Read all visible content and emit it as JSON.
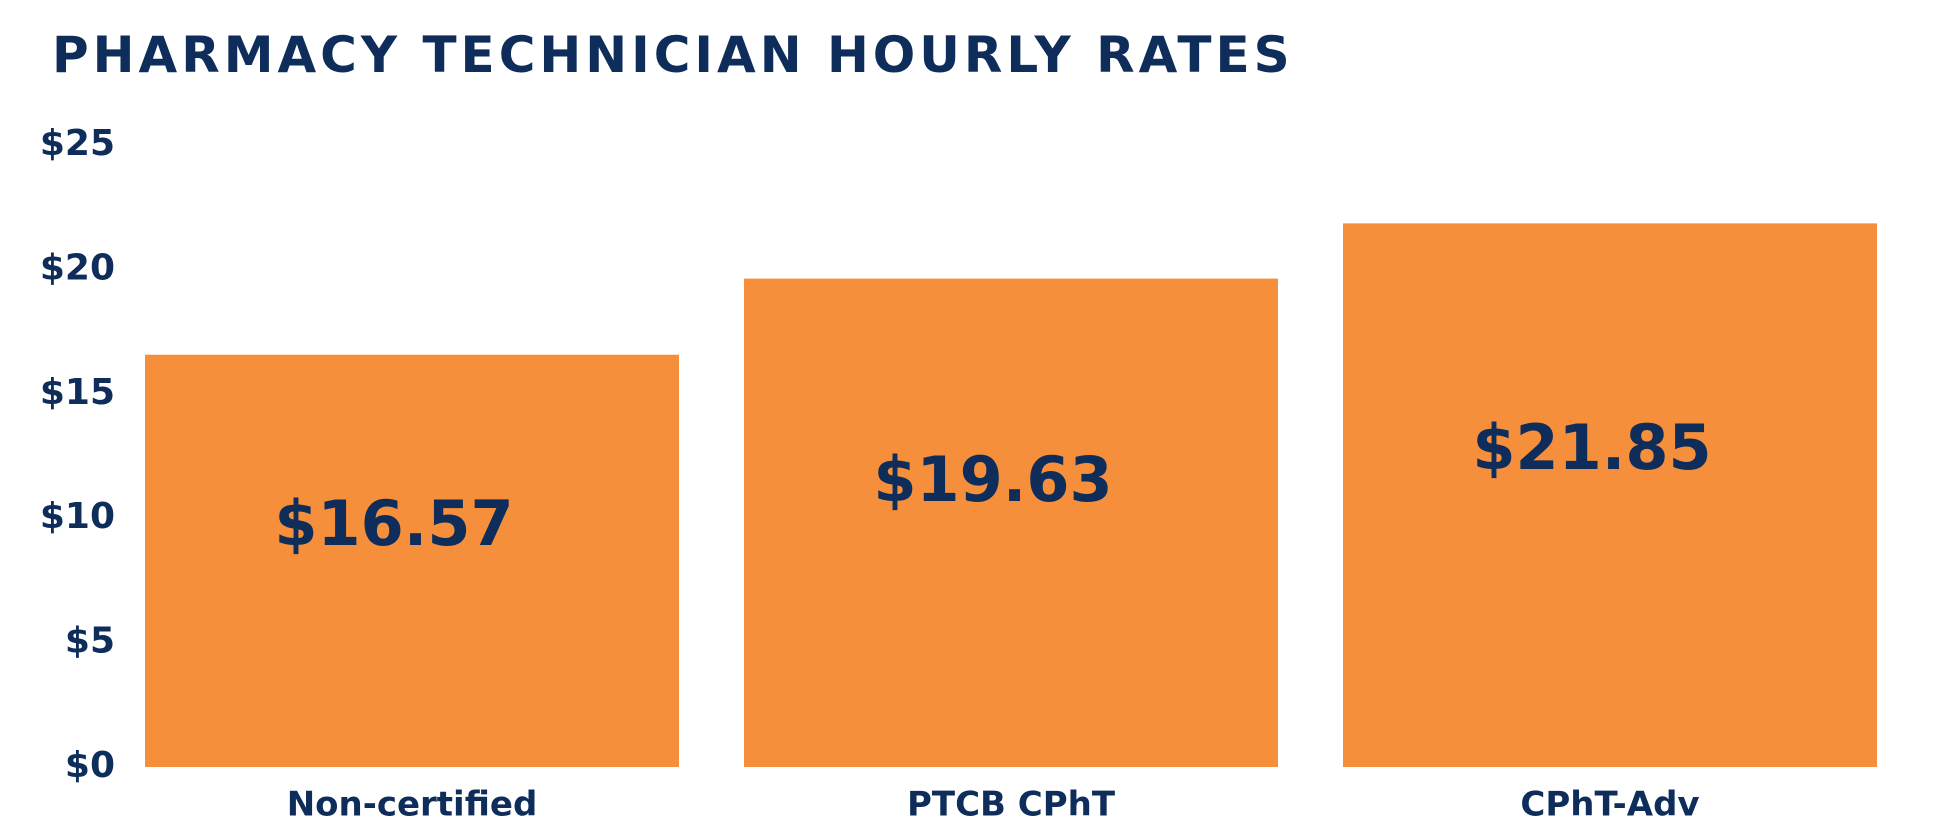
{
  "chart_data": {
    "type": "bar",
    "title": "PHARMACY TECHNICIAN HOURLY RATES",
    "xlabel": "",
    "ylabel": "",
    "categories": [
      "Non-certified",
      "PTCB CPhT",
      "CPhT-Adv"
    ],
    "values": [
      16.57,
      19.63,
      21.85
    ],
    "value_labels": [
      "$16.57",
      "$19.63",
      "$21.85"
    ],
    "ylim": [
      0,
      25
    ],
    "y_ticks": [
      0,
      5,
      10,
      15,
      20,
      25
    ],
    "y_tick_labels": [
      "$0",
      "$5",
      "$10",
      "$15",
      "$20",
      "$25"
    ],
    "grid": false,
    "legend": "none",
    "colors": {
      "bar": "#f58f3b",
      "text": "#0e2d5a",
      "background": "#ffffff"
    }
  }
}
